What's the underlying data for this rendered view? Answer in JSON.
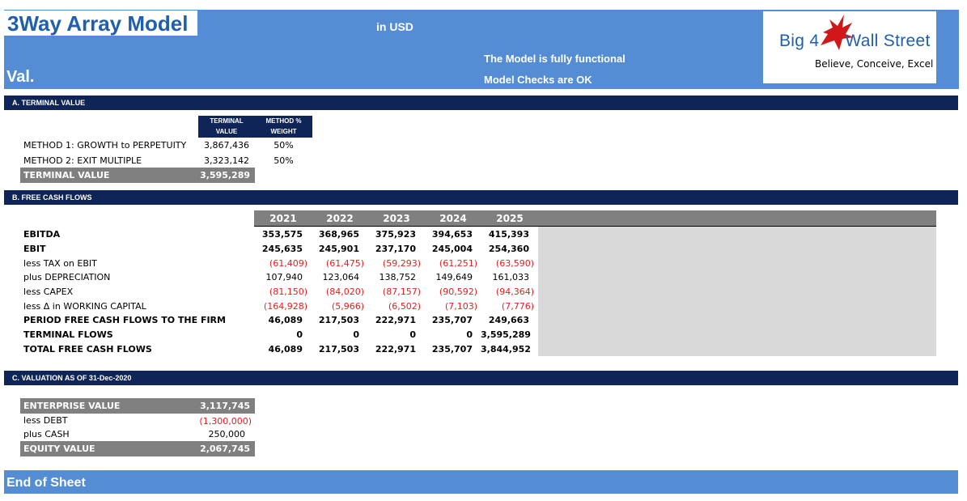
{
  "header": {
    "title": "3Way Array Model",
    "subtitle": "Val.",
    "currency": "in USD",
    "status_1": "The Model is fully functional",
    "status_2": "Model Checks are OK",
    "logo_name_left": "Big 4",
    "logo_name_right": "Wall Street",
    "logo_tagline": "Believe, Conceive, Excel"
  },
  "colors": {
    "band": "#548dd4",
    "navy": "#0f2557",
    "grey": "#808080",
    "negative": "#e02020",
    "panel": "#d9d9d9"
  },
  "terminal": {
    "section_title": "A. TERMINAL VALUE",
    "col1_line1": "TERMINAL",
    "col1_line2": "VALUE",
    "col2_line1": "METHOD %",
    "col2_line2": "WEIGHT",
    "rows": [
      {
        "label": "METHOD 1: GROWTH to PERPETUITY",
        "value": "3,867,436",
        "weight": "50%"
      },
      {
        "label": "METHOD 2: EXIT MULTIPLE",
        "value": "3,323,142",
        "weight": "50%"
      }
    ],
    "total_label": "TERMINAL VALUE",
    "total_value": "3,595,289"
  },
  "fcf": {
    "section_title": "B. FREE CASH FLOWS",
    "years": [
      "2021",
      "2022",
      "2023",
      "2024",
      "2025"
    ],
    "rows": [
      {
        "label": "EBITDA",
        "values": [
          "353,575",
          "368,965",
          "375,923",
          "394,653",
          "415,393"
        ]
      },
      {
        "label": "EBIT",
        "values": [
          "245,635",
          "245,901",
          "237,170",
          "245,004",
          "254,360"
        ]
      },
      {
        "label": "less TAX on EBIT",
        "values": [
          "(61,409)",
          "(61,475)",
          "(59,293)",
          "(61,251)",
          "(63,590)"
        ]
      },
      {
        "label": "plus DEPRECIATION",
        "values": [
          "107,940",
          "123,064",
          "138,752",
          "149,649",
          "161,033"
        ]
      },
      {
        "label": "less CAPEX",
        "values": [
          "(81,150)",
          "(84,020)",
          "(87,157)",
          "(90,592)",
          "(94,364)"
        ]
      },
      {
        "label": "less Δ in WORKING CAPITAL",
        "values": [
          "(164,928)",
          "(5,966)",
          "(6,502)",
          "(7,103)",
          "(7,776)"
        ]
      },
      {
        "label": "PERIOD FREE CASH FLOWS TO THE FIRM",
        "values": [
          "46,089",
          "217,503",
          "222,971",
          "235,707",
          "249,663"
        ]
      },
      {
        "label": "TERMINAL FLOWS",
        "values": [
          "0",
          "0",
          "0",
          "0",
          "3,595,289"
        ]
      },
      {
        "label": "TOTAL FREE CASH FLOWS",
        "values": [
          "46,089",
          "217,503",
          "222,971",
          "235,707",
          "3,844,952"
        ]
      }
    ]
  },
  "valuation": {
    "section_title": "C. VALUATION AS OF 31-Dec-2020",
    "ev_label": "ENTERPRISE VALUE",
    "ev_value": "3,117,745",
    "debt_label": "less DEBT",
    "debt_value": "(1,300,000)",
    "cash_label": "plus CASH",
    "cash_value": "250,000",
    "equity_label": "EQUITY VALUE",
    "equity_value": "2,067,745"
  },
  "footer": {
    "text": "End of Sheet"
  }
}
